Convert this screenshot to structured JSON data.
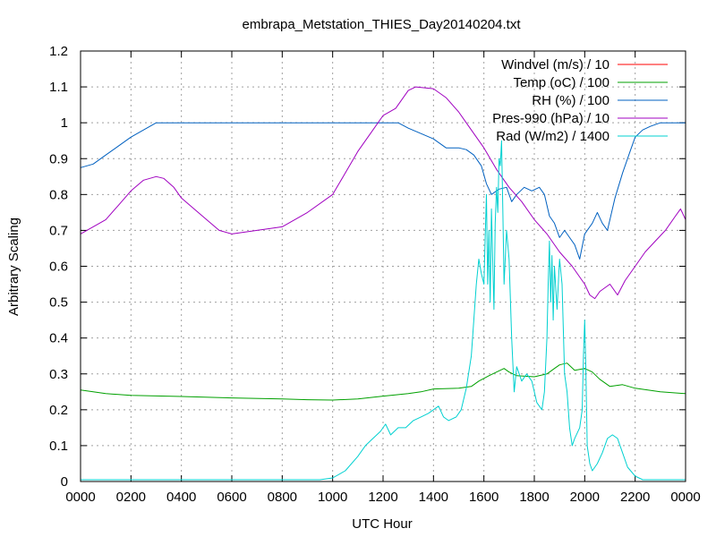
{
  "chart_data": {
    "type": "line",
    "title": "embrapa_Metstation_THIES_Day20140204.txt",
    "xlabel": "UTC Hour",
    "ylabel": "Arbitrary Scaling",
    "xlim": [
      0,
      24
    ],
    "ylim": [
      0,
      1.2
    ],
    "x_tick_labels": [
      "0000",
      "0200",
      "0400",
      "0600",
      "0800",
      "1000",
      "1200",
      "1400",
      "1600",
      "1800",
      "2000",
      "2200",
      "0000"
    ],
    "y_tick_labels": [
      "0",
      "0.1",
      "0.2",
      "0.3",
      "0.4",
      "0.5",
      "0.6",
      "0.7",
      "0.8",
      "0.9",
      "1",
      "1.1",
      "1.2"
    ],
    "grid": true,
    "legend_position": "top-right",
    "series": [
      {
        "name": "Windvel (m/s) / 10",
        "color": "#ff0000",
        "points": []
      },
      {
        "name": "Temp (oC) / 100",
        "color": "#00a000",
        "points": [
          [
            0,
            0.255
          ],
          [
            1,
            0.245
          ],
          [
            2,
            0.24
          ],
          [
            4,
            0.237
          ],
          [
            6,
            0.233
          ],
          [
            8,
            0.23
          ],
          [
            9,
            0.228
          ],
          [
            10,
            0.227
          ],
          [
            11,
            0.23
          ],
          [
            12,
            0.238
          ],
          [
            13,
            0.245
          ],
          [
            13.5,
            0.25
          ],
          [
            14,
            0.258
          ],
          [
            15,
            0.26
          ],
          [
            15.5,
            0.265
          ],
          [
            15.8,
            0.28
          ],
          [
            16.2,
            0.295
          ],
          [
            16.5,
            0.305
          ],
          [
            16.8,
            0.315
          ],
          [
            17,
            0.305
          ],
          [
            17.3,
            0.295
          ],
          [
            18,
            0.292
          ],
          [
            18.5,
            0.3
          ],
          [
            18.8,
            0.315
          ],
          [
            19,
            0.325
          ],
          [
            19.3,
            0.33
          ],
          [
            19.6,
            0.31
          ],
          [
            20,
            0.315
          ],
          [
            20.3,
            0.305
          ],
          [
            20.6,
            0.285
          ],
          [
            21,
            0.265
          ],
          [
            21.5,
            0.27
          ],
          [
            22,
            0.26
          ],
          [
            23,
            0.25
          ],
          [
            24,
            0.245
          ]
        ]
      },
      {
        "name": "RH (%) / 100",
        "color": "#0060c0",
        "points": [
          [
            0,
            0.875
          ],
          [
            0.5,
            0.885
          ],
          [
            1,
            0.91
          ],
          [
            1.5,
            0.935
          ],
          [
            2,
            0.96
          ],
          [
            2.5,
            0.98
          ],
          [
            3,
            1.0
          ],
          [
            4,
            1.0
          ],
          [
            8,
            1.0
          ],
          [
            12,
            1.0
          ],
          [
            12.6,
            1.0
          ],
          [
            13,
            0.985
          ],
          [
            13.5,
            0.97
          ],
          [
            14,
            0.955
          ],
          [
            14.5,
            0.93
          ],
          [
            15,
            0.93
          ],
          [
            15.3,
            0.925
          ],
          [
            15.6,
            0.91
          ],
          [
            15.9,
            0.88
          ],
          [
            16.1,
            0.83
          ],
          [
            16.3,
            0.8
          ],
          [
            16.6,
            0.815
          ],
          [
            16.9,
            0.82
          ],
          [
            17.1,
            0.78
          ],
          [
            17.3,
            0.8
          ],
          [
            17.6,
            0.82
          ],
          [
            17.9,
            0.81
          ],
          [
            18.2,
            0.82
          ],
          [
            18.4,
            0.8
          ],
          [
            18.6,
            0.74
          ],
          [
            18.8,
            0.72
          ],
          [
            19,
            0.68
          ],
          [
            19.2,
            0.7
          ],
          [
            19.4,
            0.68
          ],
          [
            19.6,
            0.66
          ],
          [
            19.8,
            0.62
          ],
          [
            20,
            0.69
          ],
          [
            20.3,
            0.72
          ],
          [
            20.5,
            0.75
          ],
          [
            20.7,
            0.72
          ],
          [
            20.9,
            0.7
          ],
          [
            21.2,
            0.79
          ],
          [
            21.5,
            0.86
          ],
          [
            21.8,
            0.92
          ],
          [
            22,
            0.96
          ],
          [
            22.3,
            0.98
          ],
          [
            22.6,
            0.99
          ],
          [
            23,
            1.0
          ],
          [
            24,
            1.0
          ]
        ]
      },
      {
        "name": "Pres-990 (hPa) / 10",
        "color": "#a000c0",
        "points": [
          [
            0,
            0.69
          ],
          [
            0.5,
            0.71
          ],
          [
            1,
            0.73
          ],
          [
            1.5,
            0.77
          ],
          [
            2,
            0.81
          ],
          [
            2.5,
            0.84
          ],
          [
            3,
            0.85
          ],
          [
            3.3,
            0.845
          ],
          [
            3.7,
            0.82
          ],
          [
            4,
            0.79
          ],
          [
            4.5,
            0.76
          ],
          [
            5,
            0.73
          ],
          [
            5.5,
            0.7
          ],
          [
            6,
            0.69
          ],
          [
            7,
            0.7
          ],
          [
            8,
            0.71
          ],
          [
            9,
            0.75
          ],
          [
            10,
            0.8
          ],
          [
            10.5,
            0.86
          ],
          [
            11,
            0.92
          ],
          [
            11.5,
            0.97
          ],
          [
            12,
            1.02
          ],
          [
            12.5,
            1.04
          ],
          [
            13,
            1.09
          ],
          [
            13.3,
            1.1
          ],
          [
            14,
            1.095
          ],
          [
            14.5,
            1.07
          ],
          [
            15,
            1.03
          ],
          [
            15.5,
            0.98
          ],
          [
            16,
            0.93
          ],
          [
            16.5,
            0.87
          ],
          [
            17,
            0.82
          ],
          [
            17.5,
            0.78
          ],
          [
            18,
            0.73
          ],
          [
            18.5,
            0.69
          ],
          [
            19,
            0.64
          ],
          [
            19.5,
            0.6
          ],
          [
            20,
            0.55
          ],
          [
            20.2,
            0.52
          ],
          [
            20.4,
            0.51
          ],
          [
            20.6,
            0.53
          ],
          [
            21,
            0.55
          ],
          [
            21.3,
            0.52
          ],
          [
            21.6,
            0.56
          ],
          [
            22,
            0.6
          ],
          [
            22.4,
            0.64
          ],
          [
            22.8,
            0.67
          ],
          [
            23.2,
            0.7
          ],
          [
            23.6,
            0.74
          ],
          [
            23.8,
            0.76
          ],
          [
            24,
            0.73
          ]
        ]
      },
      {
        "name": "Rad (W/m2) / 1400",
        "color": "#00d0d0",
        "points": [
          [
            0,
            0.005
          ],
          [
            2,
            0.005
          ],
          [
            4,
            0.005
          ],
          [
            6,
            0.005
          ],
          [
            8,
            0.005
          ],
          [
            9.5,
            0.005
          ],
          [
            10,
            0.01
          ],
          [
            10.5,
            0.03
          ],
          [
            11,
            0.07
          ],
          [
            11.3,
            0.1
          ],
          [
            11.6,
            0.12
          ],
          [
            11.9,
            0.14
          ],
          [
            12.1,
            0.16
          ],
          [
            12.3,
            0.13
          ],
          [
            12.6,
            0.15
          ],
          [
            12.9,
            0.15
          ],
          [
            13.2,
            0.17
          ],
          [
            13.5,
            0.18
          ],
          [
            13.8,
            0.19
          ],
          [
            14,
            0.2
          ],
          [
            14.2,
            0.21
          ],
          [
            14.4,
            0.18
          ],
          [
            14.6,
            0.17
          ],
          [
            14.9,
            0.18
          ],
          [
            15.1,
            0.2
          ],
          [
            15.3,
            0.26
          ],
          [
            15.5,
            0.35
          ],
          [
            15.6,
            0.45
          ],
          [
            15.7,
            0.55
          ],
          [
            15.8,
            0.62
          ],
          [
            15.9,
            0.58
          ],
          [
            16,
            0.55
          ],
          [
            16.05,
            0.68
          ],
          [
            16.1,
            0.8
          ],
          [
            16.15,
            0.55
          ],
          [
            16.2,
            0.7
          ],
          [
            16.25,
            0.5
          ],
          [
            16.3,
            0.76
          ],
          [
            16.35,
            0.62
          ],
          [
            16.4,
            0.48
          ],
          [
            16.45,
            0.72
          ],
          [
            16.5,
            0.82
          ],
          [
            16.55,
            0.75
          ],
          [
            16.6,
            0.9
          ],
          [
            16.65,
            0.88
          ],
          [
            16.7,
            0.95
          ],
          [
            16.75,
            0.76
          ],
          [
            16.8,
            0.55
          ],
          [
            16.9,
            0.7
          ],
          [
            17,
            0.62
          ],
          [
            17.1,
            0.4
          ],
          [
            17.2,
            0.25
          ],
          [
            17.3,
            0.32
          ],
          [
            17.5,
            0.28
          ],
          [
            17.7,
            0.3
          ],
          [
            17.9,
            0.28
          ],
          [
            18.1,
            0.22
          ],
          [
            18.3,
            0.2
          ],
          [
            18.4,
            0.25
          ],
          [
            18.5,
            0.4
          ],
          [
            18.55,
            0.55
          ],
          [
            18.6,
            0.67
          ],
          [
            18.65,
            0.5
          ],
          [
            18.7,
            0.63
          ],
          [
            18.75,
            0.45
          ],
          [
            18.8,
            0.6
          ],
          [
            18.9,
            0.48
          ],
          [
            19,
            0.62
          ],
          [
            19.1,
            0.55
          ],
          [
            19.2,
            0.3
          ],
          [
            19.3,
            0.25
          ],
          [
            19.4,
            0.15
          ],
          [
            19.5,
            0.1
          ],
          [
            19.6,
            0.12
          ],
          [
            19.8,
            0.15
          ],
          [
            19.9,
            0.2
          ],
          [
            19.95,
            0.35
          ],
          [
            20,
            0.45
          ],
          [
            20.05,
            0.3
          ],
          [
            20.1,
            0.1
          ],
          [
            20.2,
            0.05
          ],
          [
            20.3,
            0.03
          ],
          [
            20.5,
            0.05
          ],
          [
            20.7,
            0.08
          ],
          [
            20.9,
            0.12
          ],
          [
            21.1,
            0.13
          ],
          [
            21.3,
            0.12
          ],
          [
            21.5,
            0.08
          ],
          [
            21.7,
            0.04
          ],
          [
            22,
            0.015
          ],
          [
            22.3,
            0.005
          ],
          [
            23,
            0.005
          ],
          [
            24,
            0.005
          ]
        ]
      }
    ]
  }
}
